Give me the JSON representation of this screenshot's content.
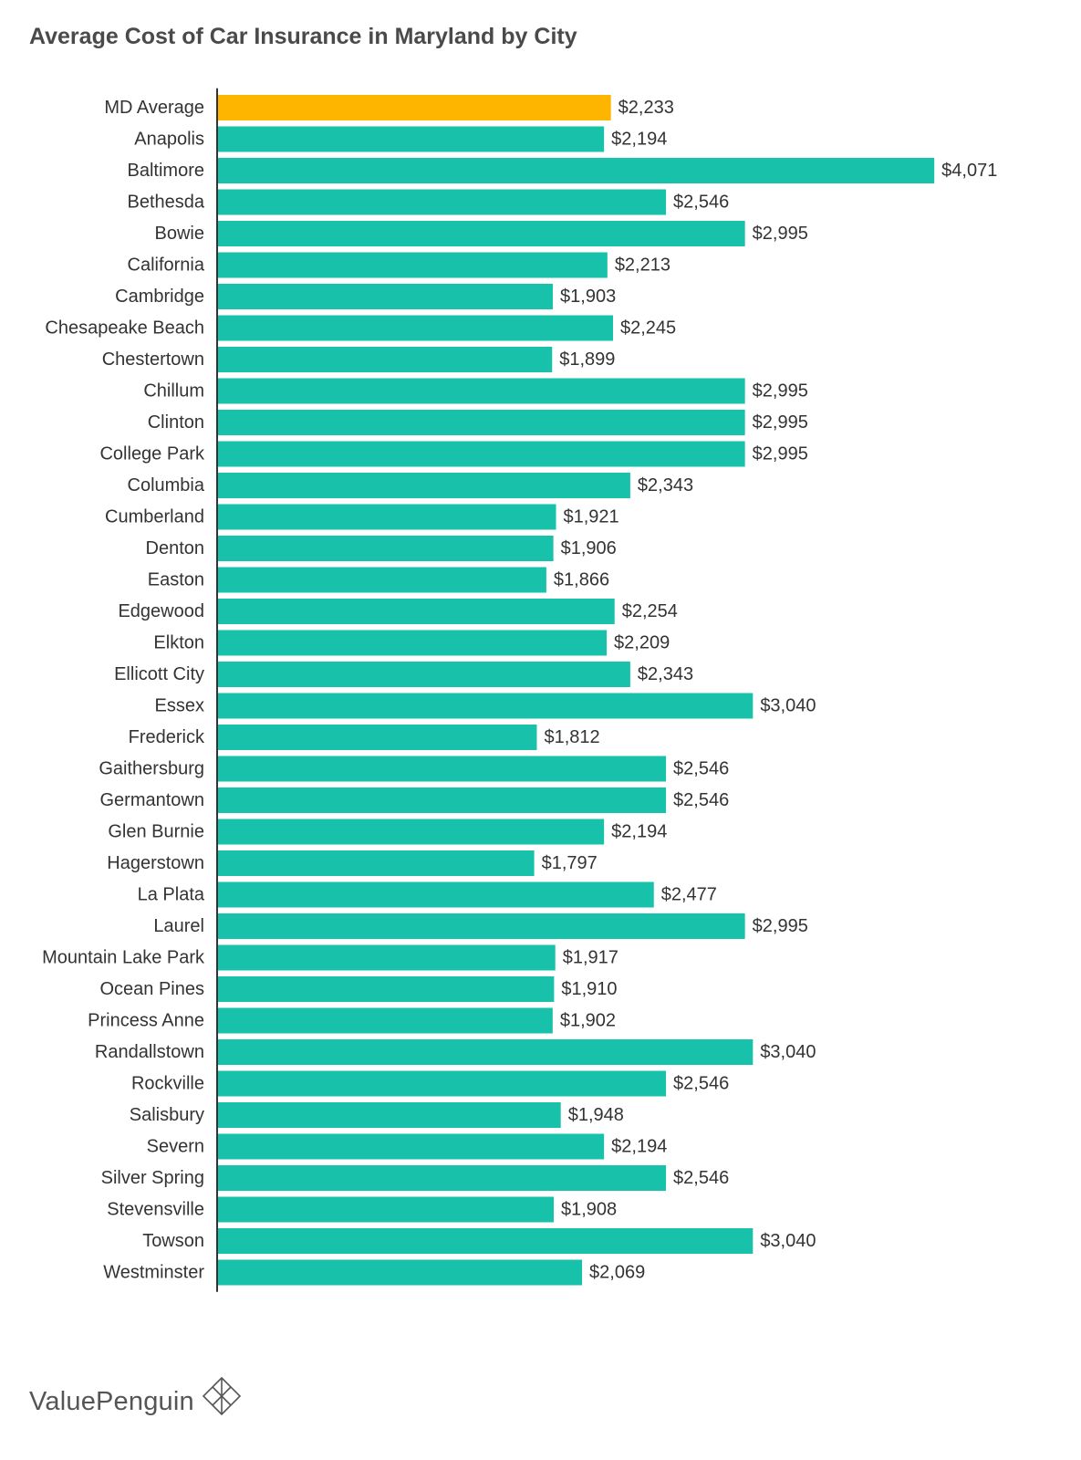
{
  "chart_data": {
    "type": "bar",
    "orientation": "horizontal",
    "title": "Average Cost of Car Insurance in Maryland by City",
    "xlabel": "",
    "ylabel": "",
    "xlim": [
      0,
      4200
    ],
    "grid": false,
    "legend": "none",
    "colors": {
      "default": "#18c1a9",
      "highlight": "#fdb500",
      "axis": "#333333",
      "label_text": "#333333"
    },
    "categories": [
      "MD Average",
      "Anapolis",
      "Baltimore",
      "Bethesda",
      "Bowie",
      "California",
      "Cambridge",
      "Chesapeake Beach",
      "Chestertown",
      "Chillum",
      "Clinton",
      "College Park",
      "Columbia",
      "Cumberland",
      "Denton",
      "Easton",
      "Edgewood",
      "Elkton",
      "Ellicott City",
      "Essex",
      "Frederick",
      "Gaithersburg",
      "Germantown",
      "Glen Burnie",
      "Hagerstown",
      "La Plata",
      "Laurel",
      "Mountain Lake Park",
      "Ocean Pines",
      "Princess Anne",
      "Randallstown",
      "Rockville",
      "Salisbury",
      "Severn",
      "Silver Spring",
      "Stevensville",
      "Towson",
      "Westminster"
    ],
    "values": [
      2233,
      2194,
      4071,
      2546,
      2995,
      2213,
      1903,
      2245,
      1899,
      2995,
      2995,
      2995,
      2343,
      1921,
      1906,
      1866,
      2254,
      2209,
      2343,
      3040,
      1812,
      2546,
      2546,
      2194,
      1797,
      2477,
      2995,
      1917,
      1910,
      1902,
      3040,
      2546,
      1948,
      2194,
      2546,
      1908,
      3040,
      2069
    ],
    "highlight_category": "MD Average",
    "value_labels": [
      "$2,233",
      "$2,194",
      "$4,071",
      "$2,546",
      "$2,995",
      "$2,213",
      "$1,903",
      "$2,245",
      "$1,899",
      "$2,995",
      "$2,995",
      "$2,995",
      "$2,343",
      "$1,921",
      "$1,906",
      "$1,866",
      "$2,254",
      "$2,209",
      "$2,343",
      "$3,040",
      "$1,812",
      "$2,546",
      "$2,546",
      "$2,194",
      "$1,797",
      "$2,477",
      "$2,995",
      "$1,917",
      "$1,910",
      "$1,902",
      "$3,040",
      "$2,546",
      "$1,948",
      "$2,194",
      "$2,546",
      "$1,908",
      "$3,040",
      "$2,069"
    ]
  },
  "footer": {
    "brand": "ValuePenguin",
    "logo_icon": "valuepenguin-logo-icon"
  }
}
